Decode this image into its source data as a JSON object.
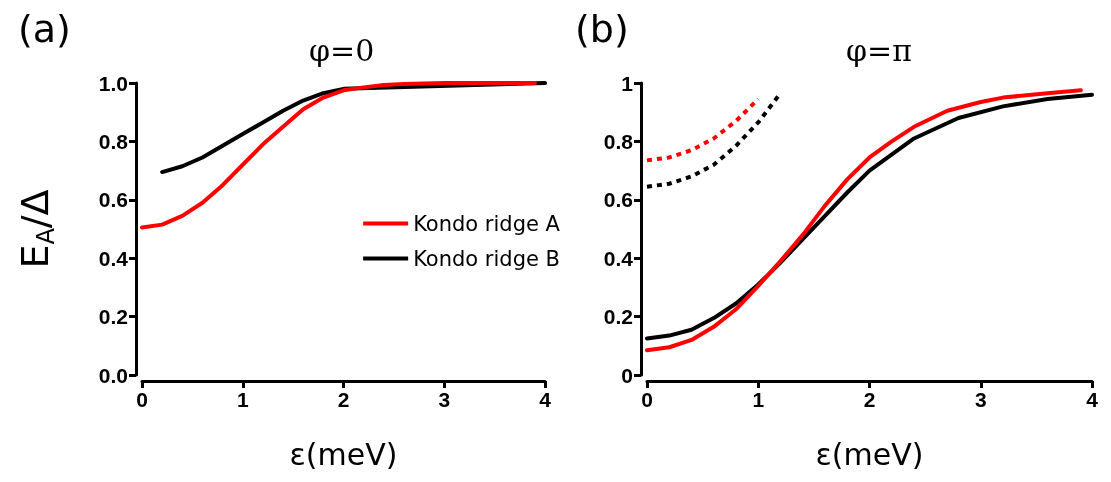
{
  "chart_data": [
    {
      "type": "line",
      "title": "φ=0",
      "annotations": [
        "(a)"
      ],
      "xlabel": "ε(meV)",
      "ylabel": "E$_{A}$/Δ",
      "xlim": [
        0,
        4
      ],
      "xticks": [
        0,
        1,
        2,
        3,
        4
      ],
      "ylim": [
        0,
        1
      ],
      "yticks": [
        {
          "value": 0,
          "label": "0.0"
        },
        {
          "value": 0.2,
          "label": "0.2"
        },
        {
          "value": 0.4,
          "label": "0.4"
        },
        {
          "value": 0.6,
          "label": "0.6"
        },
        {
          "value": 0.8,
          "label": "0.8"
        },
        {
          "value": 1,
          "label": "1.0"
        }
      ],
      "grid": false,
      "legend": "right",
      "marker": "none",
      "line_style": "solid",
      "series": [
        {
          "name": "Kondo ridge A",
          "color": "#ff0000",
          "x": [
            0,
            0.2,
            0.4,
            0.6,
            0.8,
            1.0,
            1.2,
            1.4,
            1.6,
            1.8,
            2.0,
            2.2,
            2.4,
            2.6,
            3.0,
            3.5,
            3.9
          ],
          "values": [
            0.505,
            0.515,
            0.545,
            0.59,
            0.65,
            0.72,
            0.79,
            0.85,
            0.91,
            0.95,
            0.975,
            0.985,
            0.993,
            0.997,
            1.0,
            1.0,
            1.0
          ]
        },
        {
          "name": "Kondo ridge B",
          "color": "#000000",
          "x": [
            0.2,
            0.4,
            0.6,
            0.8,
            1.0,
            1.2,
            1.4,
            1.6,
            1.8,
            2.0,
            2.4,
            3.0,
            4.0
          ],
          "values": [
            0.695,
            0.715,
            0.745,
            0.785,
            0.825,
            0.865,
            0.905,
            0.94,
            0.965,
            0.98,
            null,
            null,
            1.0
          ]
        }
      ]
    },
    {
      "type": "line",
      "title": "φ=π",
      "annotations": [
        "(b)"
      ],
      "xlabel": "ε(meV)",
      "xlim": [
        0,
        4
      ],
      "xticks": [
        0,
        1,
        2,
        3,
        4
      ],
      "ylim": [
        0,
        1
      ],
      "yticks": [
        0,
        0.2,
        0.4,
        0.6,
        0.8,
        1
      ],
      "grid": false,
      "legend": false,
      "marker": "none",
      "line_style": "solid",
      "series": [
        {
          "color": "#ff0000",
          "x": [
            0,
            0.2,
            0.4,
            0.6,
            0.8,
            1.0,
            1.2,
            1.4,
            1.6,
            1.8,
            2.0,
            2.2,
            2.4,
            2.7,
            3.0,
            3.2,
            3.6,
            3.9
          ],
          "values": [
            0.085,
            0.095,
            0.12,
            0.165,
            0.225,
            0.305,
            0.39,
            0.48,
            0.58,
            0.67,
            0.745,
            0.8,
            0.85,
            0.905,
            0.935,
            0.95,
            0.965,
            0.975
          ]
        },
        {
          "color": "#000000",
          "x": [
            0,
            0.2,
            0.4,
            0.6,
            0.8,
            1.0,
            1.2,
            1.4,
            1.6,
            1.8,
            2.0,
            2.4,
            2.8,
            3.2,
            3.6,
            4.0
          ],
          "values": [
            0.125,
            0.135,
            0.155,
            0.195,
            0.245,
            0.31,
            0.385,
            0.465,
            0.545,
            0.625,
            0.7,
            0.81,
            0.88,
            0.92,
            0.945,
            0.96
          ]
        },
        {
          "color": "#ff0000",
          "line_style": "dotted",
          "x": [
            0,
            0.2,
            0.4,
            0.6,
            0.8,
            1.0
          ],
          "values": [
            0.735,
            0.745,
            0.77,
            0.81,
            0.87,
            0.945
          ]
        },
        {
          "color": "#000000",
          "line_style": "dotted",
          "x": [
            0,
            0.2,
            0.4,
            0.6,
            0.8,
            1.0,
            1.2
          ],
          "values": [
            0.645,
            0.655,
            0.68,
            0.72,
            0.785,
            0.865,
            0.965
          ]
        }
      ]
    }
  ]
}
